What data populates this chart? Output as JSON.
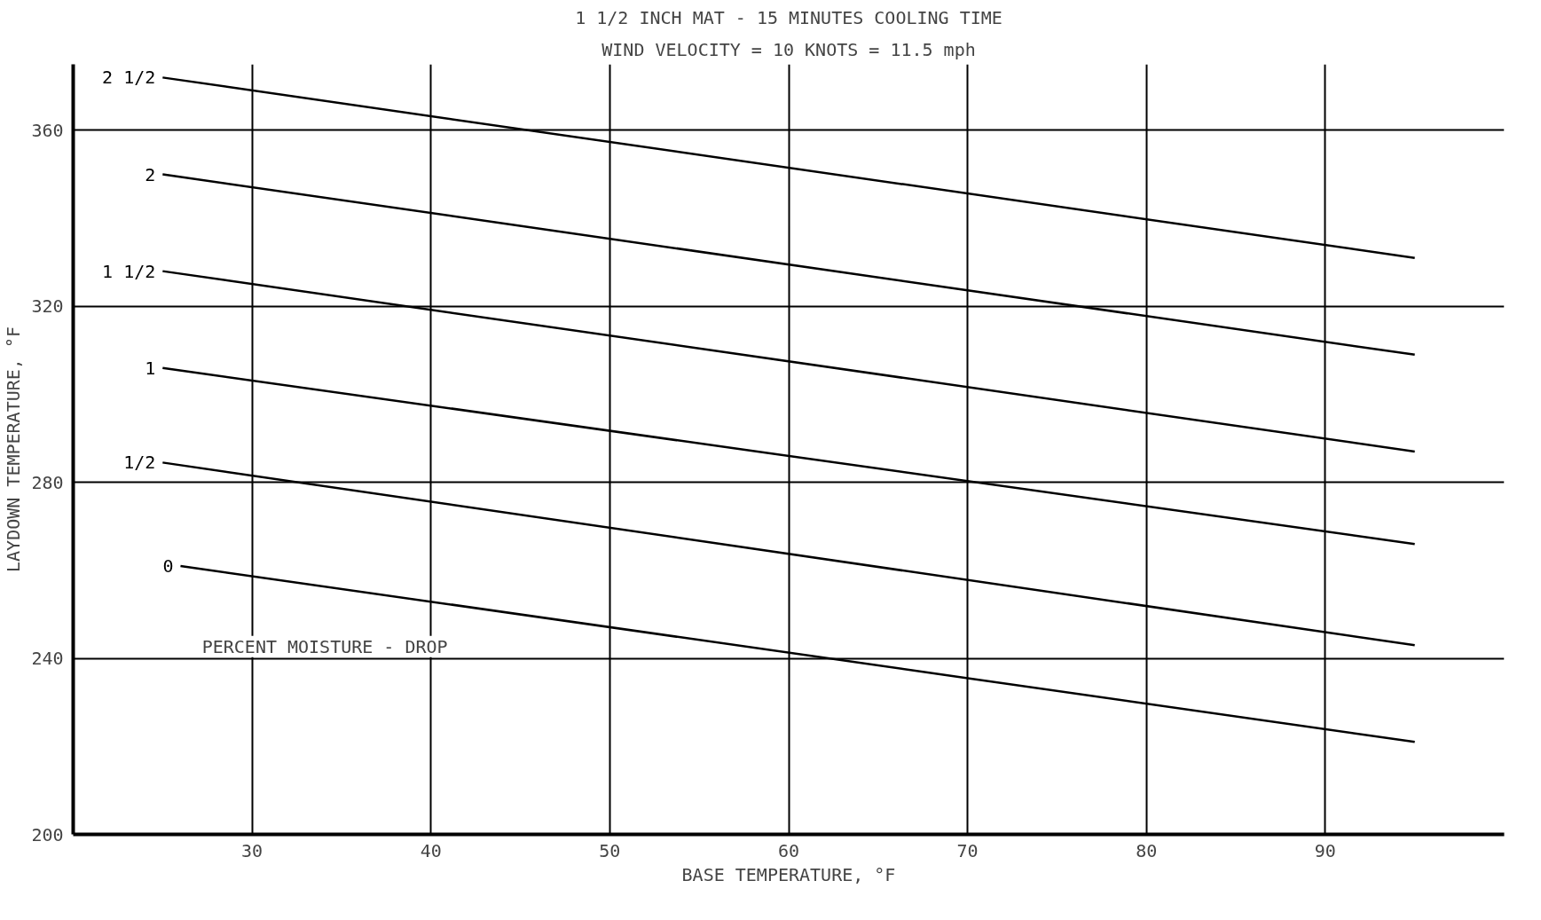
{
  "chart_data": {
    "type": "line",
    "title": "1 1/2 INCH MAT - 15 MINUTES COOLING TIME",
    "subtitle": "WIND VELOCITY = 10 KNOTS = 11.5 mph",
    "xlabel": "BASE TEMPERATURE, °F",
    "ylabel": "LAYDOWN TEMPERATURE, °F",
    "xlim": [
      20,
      100
    ],
    "xticks": [
      30,
      40,
      50,
      60,
      70,
      80,
      90
    ],
    "ylim": [
      200,
      375
    ],
    "yticks": [
      200,
      240,
      280,
      320,
      360
    ],
    "grid": true,
    "marker": "none",
    "line_style": "solid",
    "annotations": [
      "PERCENT MOISTURE - DROP"
    ],
    "series": [
      {
        "name": "2 1/2",
        "color": "#000000",
        "x": [
          25,
          95
        ],
        "values": [
          372,
          331
        ]
      },
      {
        "name": "2",
        "color": "#000000",
        "x": [
          25,
          95
        ],
        "values": [
          350,
          309
        ]
      },
      {
        "name": "1 1/2",
        "color": "#000000",
        "x": [
          25,
          95
        ],
        "values": [
          328,
          287
        ]
      },
      {
        "name": "1",
        "color": "#000000",
        "x": [
          25,
          95
        ],
        "values": [
          306,
          266
        ]
      },
      {
        "name": "1/2",
        "color": "#000000",
        "x": [
          25,
          95
        ],
        "values": [
          284.5,
          243
        ]
      },
      {
        "name": "0",
        "color": "#000000",
        "x": [
          26,
          95
        ],
        "values": [
          261,
          221
        ]
      }
    ]
  }
}
